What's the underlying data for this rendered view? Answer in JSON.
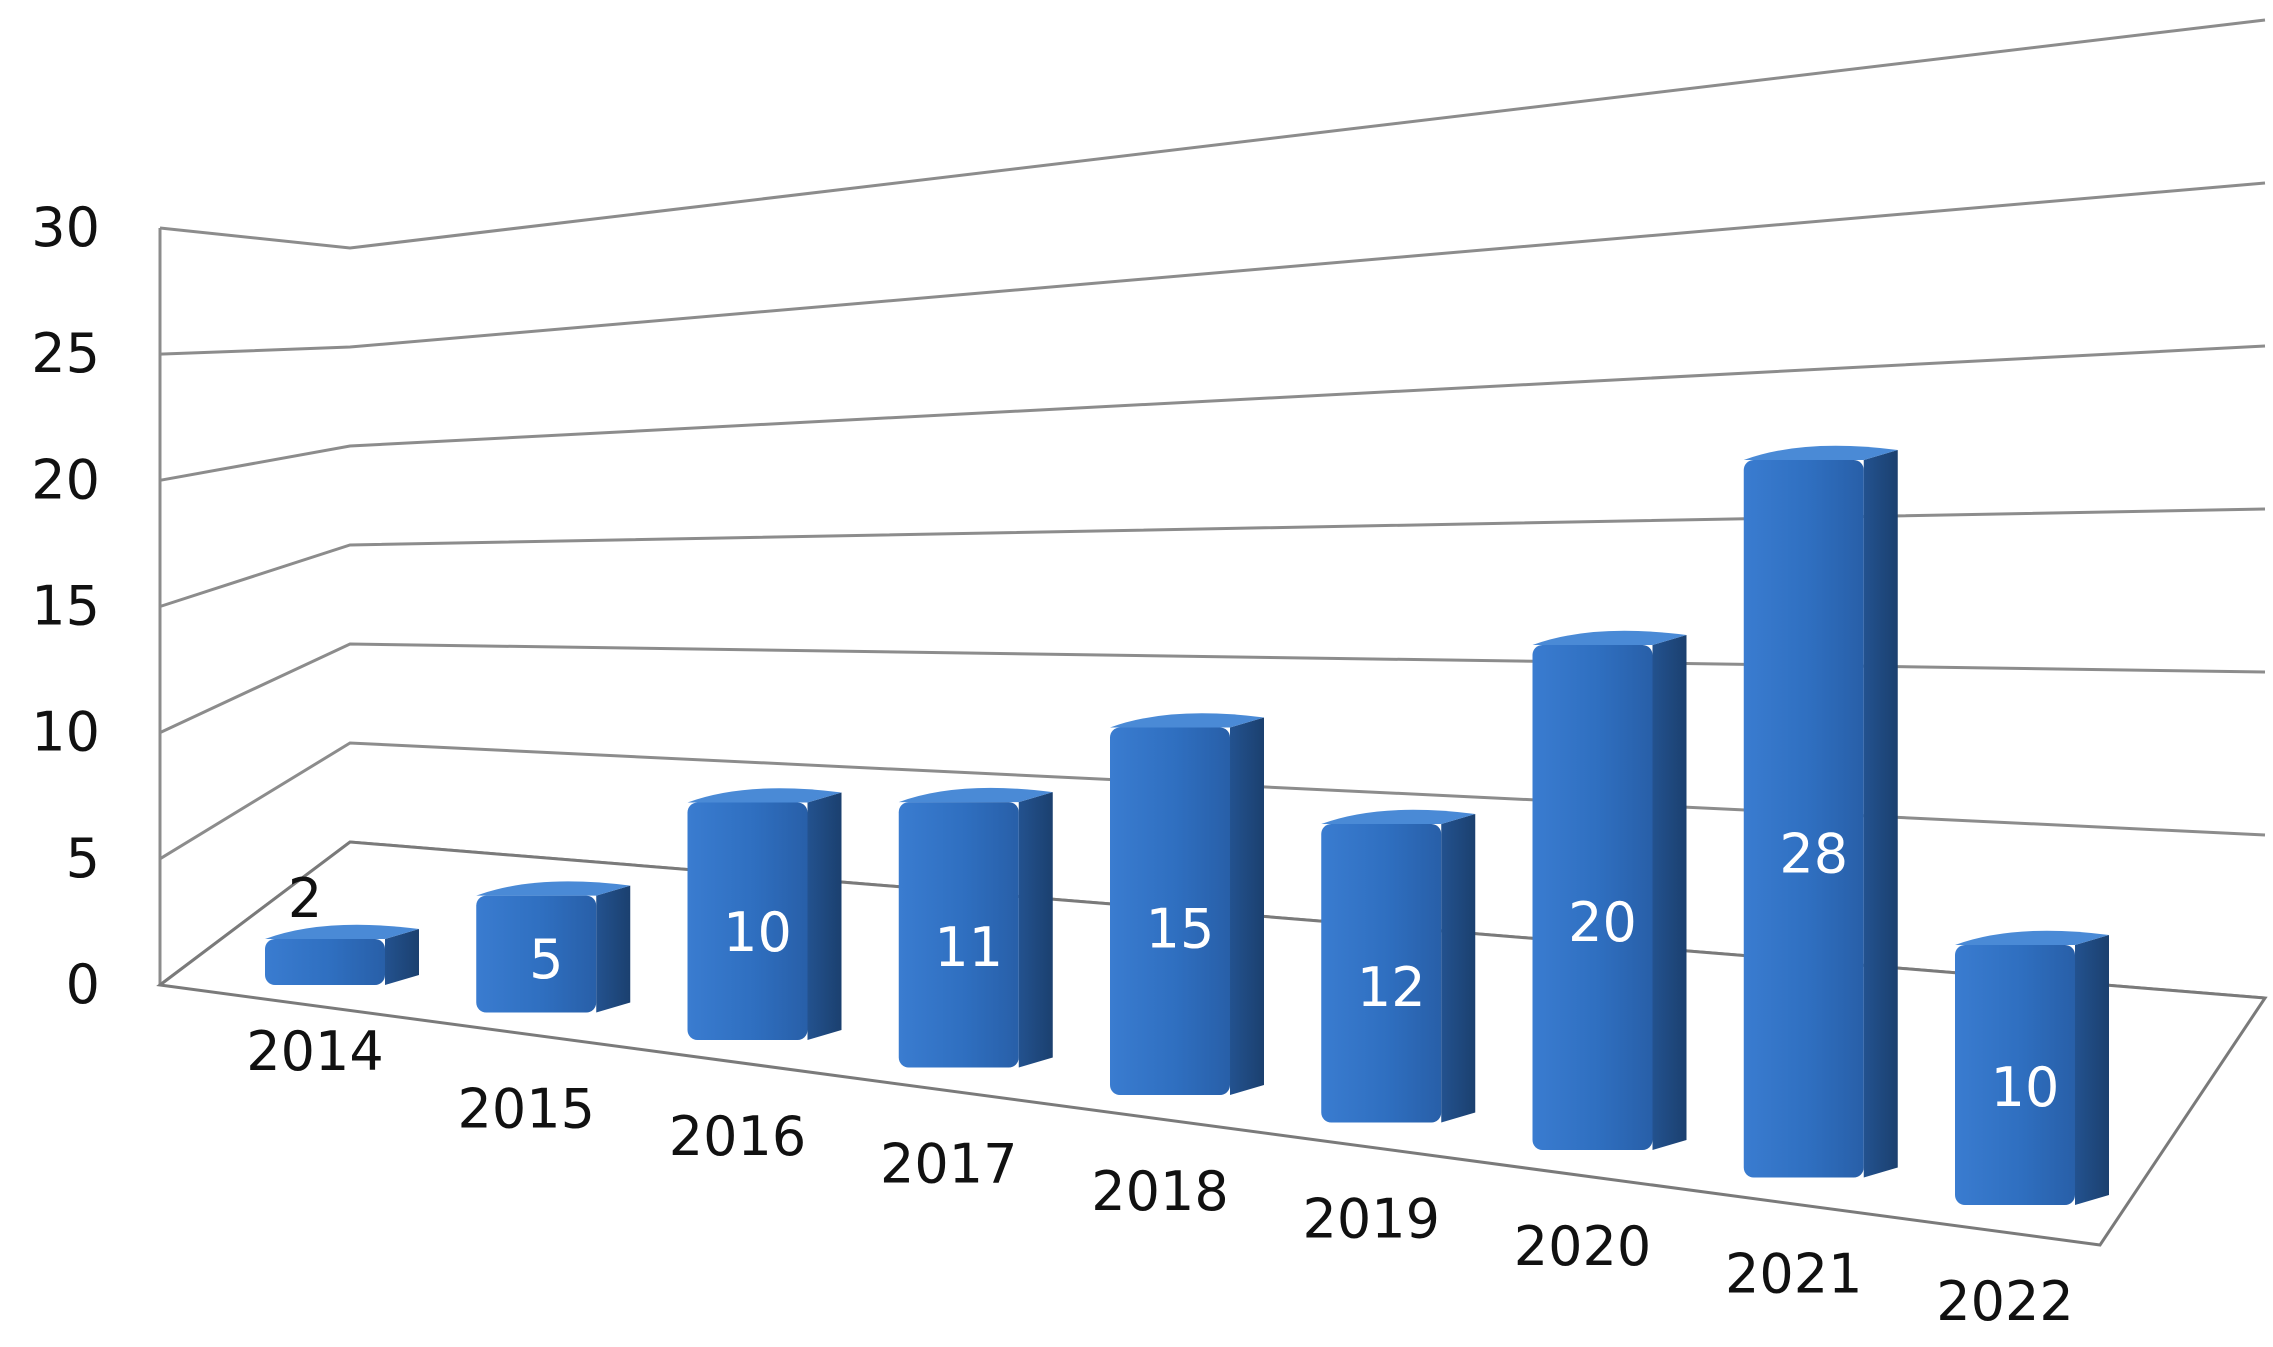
{
  "chart_data": {
    "type": "bar",
    "title": "",
    "xlabel": "",
    "ylabel": "",
    "categories": [
      "2014",
      "2015",
      "2016",
      "2017",
      "2018",
      "2019",
      "2020",
      "2021",
      "2022"
    ],
    "values": [
      2,
      5,
      10,
      11,
      15,
      12,
      20,
      28,
      10
    ],
    "data_labels": [
      "2",
      "5",
      "10",
      "11",
      "15",
      "12",
      "20",
      "28",
      "10"
    ],
    "ylim": [
      0,
      30
    ],
    "yticks": [
      0,
      5,
      10,
      15,
      20,
      25,
      30
    ],
    "ytick_labels": [
      "0",
      "5",
      "10",
      "15",
      "20",
      "25",
      "30"
    ],
    "grid": true,
    "style": "3d-column",
    "colors": {
      "bar_front": "#2f6fc0",
      "bar_side": "#1f4a86",
      "bar_top": "#4a8ad6",
      "grid": "#8c8c8c",
      "label_inside": "#ffffff",
      "label_outside": "#111111"
    }
  }
}
